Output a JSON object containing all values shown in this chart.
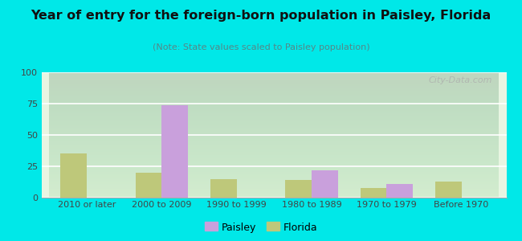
{
  "title": "Year of entry for the foreign-born population in Paisley, Florida",
  "subtitle": "(Note: State values scaled to Paisley population)",
  "categories": [
    "2010 or later",
    "2000 to 2009",
    "1990 to 1999",
    "1980 to 1989",
    "1970 to 1979",
    "Before 1970"
  ],
  "paisley_values": [
    0,
    74,
    0,
    22,
    11,
    0
  ],
  "florida_values": [
    35,
    20,
    15,
    14,
    8,
    13
  ],
  "paisley_color": "#c9a0dc",
  "florida_color": "#bec87a",
  "background_outer": "#00e8e8",
  "background_inner": "#e8f5e2",
  "ylim": [
    0,
    100
  ],
  "yticks": [
    0,
    25,
    50,
    75,
    100
  ],
  "bar_width": 0.35,
  "legend_paisley": "Paisley",
  "legend_florida": "Florida",
  "title_fontsize": 11.5,
  "subtitle_fontsize": 8,
  "tick_fontsize": 8,
  "watermark": "City-Data.com"
}
